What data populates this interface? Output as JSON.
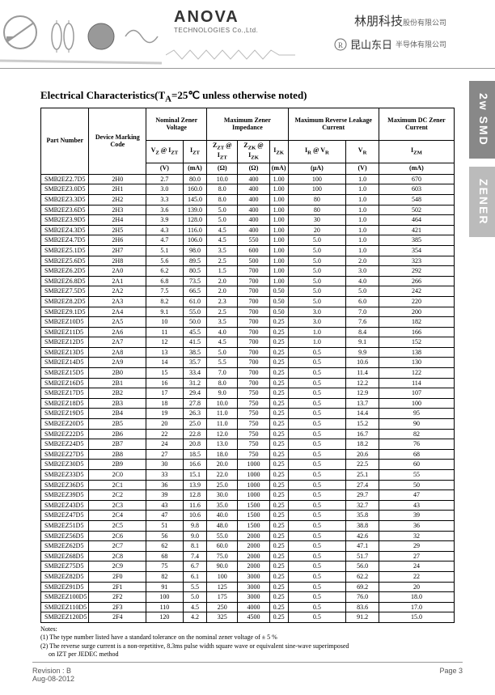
{
  "header": {
    "logo_main": "ANOVA",
    "logo_sub": "TECHNOLOGIES Co.,Ltd.",
    "cn_line1": "林朋科技",
    "cn_line1_small": "股份有限公司",
    "cn_line2": "昆山东日",
    "cn_line2_small": "半导体有限公司"
  },
  "side_tabs": [
    "2w SMD",
    "ZENER"
  ],
  "title": "Electrical Characteristics(T",
  "title_sub": "A",
  "title_rest": "=25℃ unless otherwise noted)",
  "table": {
    "head_row1": [
      "Part Number",
      "Device Marking Code",
      "Nominal Zener Voltage",
      "Maximum Zener Impedance",
      "Maximum Reverse Leakage Current",
      "Maximum DC Zener Current"
    ],
    "head_row2": [
      "V",
      "I",
      "Z",
      "Z",
      "I",
      "I",
      "V",
      "I"
    ],
    "head_row2_sub": [
      "Z",
      "ZT",
      "ZT",
      "ZK",
      "ZK",
      "R",
      "R",
      "ZM"
    ],
    "head_row2_at": [
      " @ I",
      "",
      " @ I",
      " @ I",
      "",
      " @ V",
      "",
      ""
    ],
    "head_row2_at_sub": [
      "ZT",
      "",
      "ZT",
      "ZK",
      "",
      "R",
      "",
      ""
    ],
    "units": [
      "(V)",
      "(mA)",
      "(Ω)",
      "(Ω)",
      "(mA)",
      "(µA)",
      "(V)",
      "(mA)"
    ],
    "rows": [
      [
        "SMB2EZ2.7D5",
        "2H0",
        "2.7",
        "80.0",
        "10.0",
        "400",
        "1.00",
        "100",
        "1.0",
        "670"
      ],
      [
        "SMB2EZ3.0D5",
        "2H1",
        "3.0",
        "160.0",
        "8.0",
        "400",
        "1.00",
        "100",
        "1.0",
        "603"
      ],
      [
        "SMB2EZ3.3D5",
        "2H2",
        "3.3",
        "145.0",
        "8.0",
        "400",
        "1.00",
        "80",
        "1.0",
        "548"
      ],
      [
        "SMB2EZ3.6D5",
        "2H3",
        "3.6",
        "139.0",
        "5.0",
        "400",
        "1.00",
        "80",
        "1.0",
        "502"
      ],
      [
        "SMB2EZ3.9D5",
        "2H4",
        "3.9",
        "128.0",
        "5.0",
        "400",
        "1.00",
        "30",
        "1.0",
        "464"
      ],
      [
        "SMB2EZ4.3D5",
        "2H5",
        "4.3",
        "116.0",
        "4.5",
        "400",
        "1.00",
        "20",
        "1.0",
        "421"
      ],
      [
        "SMB2EZ4.7D5",
        "2H6",
        "4.7",
        "106.0",
        "4.5",
        "550",
        "1.00",
        "5.0",
        "1.0",
        "385"
      ],
      [
        "SMB2EZ5.1D5",
        "2H7",
        "5.1",
        "98.0",
        "3.5",
        "600",
        "1.00",
        "5.0",
        "1.0",
        "354"
      ],
      [
        "SMB2EZ5.6D5",
        "2H8",
        "5.6",
        "89.5",
        "2.5",
        "500",
        "1.00",
        "5.0",
        "2.0",
        "323"
      ],
      [
        "SMB2EZ6.2D5",
        "2A0",
        "6.2",
        "80.5",
        "1.5",
        "700",
        "1.00",
        "5.0",
        "3.0",
        "292"
      ],
      [
        "SMB2EZ6.8D5",
        "2A1",
        "6.8",
        "73.5",
        "2.0",
        "700",
        "1.00",
        "5.0",
        "4.0",
        "266"
      ],
      [
        "SMB2EZ7.5D5",
        "2A2",
        "7.5",
        "66.5",
        "2.0",
        "700",
        "0.50",
        "5.0",
        "5.0",
        "242"
      ],
      [
        "SMB2EZ8.2D5",
        "2A3",
        "8.2",
        "61.0",
        "2.3",
        "700",
        "0.50",
        "5.0",
        "6.0",
        "220"
      ],
      [
        "SMB2EZ9.1D5",
        "2A4",
        "9.1",
        "55.0",
        "2.5",
        "700",
        "0.50",
        "3.0",
        "7.0",
        "200"
      ],
      [
        "SMB2EZ10D5",
        "2A5",
        "10",
        "50.0",
        "3.5",
        "700",
        "0.25",
        "3.0",
        "7.6",
        "182"
      ],
      [
        "SMB2EZ11D5",
        "2A6",
        "11",
        "45.5",
        "4.0",
        "700",
        "0.25",
        "1.0",
        "8.4",
        "166"
      ],
      [
        "SMB2EZ12D5",
        "2A7",
        "12",
        "41.5",
        "4.5",
        "700",
        "0.25",
        "1.0",
        "9.1",
        "152"
      ],
      [
        "SMB2EZ13D5",
        "2A8",
        "13",
        "38.5",
        "5.0",
        "700",
        "0.25",
        "0.5",
        "9.9",
        "138"
      ],
      [
        "SMB2EZ14D5",
        "2A9",
        "14",
        "35.7",
        "5.5",
        "700",
        "0.25",
        "0.5",
        "10.6",
        "130"
      ],
      [
        "SMB2EZ15D5",
        "2B0",
        "15",
        "33.4",
        "7.0",
        "700",
        "0.25",
        "0.5",
        "11.4",
        "122"
      ],
      [
        "SMB2EZ16D5",
        "2B1",
        "16",
        "31.2",
        "8.0",
        "700",
        "0.25",
        "0.5",
        "12.2",
        "114"
      ],
      [
        "SMB2EZ17D5",
        "2B2",
        "17",
        "29.4",
        "9.0",
        "750",
        "0.25",
        "0.5",
        "12.9",
        "107"
      ],
      [
        "SMB2EZ18D5",
        "2B3",
        "18",
        "27.8",
        "10.0",
        "750",
        "0.25",
        "0.5",
        "13.7",
        "100"
      ],
      [
        "SMB2EZ19D5",
        "2B4",
        "19",
        "26.3",
        "11.0",
        "750",
        "0.25",
        "0.5",
        "14.4",
        "95"
      ],
      [
        "SMB2EZ20D5",
        "2B5",
        "20",
        "25.0",
        "11.0",
        "750",
        "0.25",
        "0.5",
        "15.2",
        "90"
      ],
      [
        "SMB2EZ22D5",
        "2B6",
        "22",
        "22.8",
        "12.0",
        "750",
        "0.25",
        "0.5",
        "16.7",
        "82"
      ],
      [
        "SMB2EZ24D5",
        "2B7",
        "24",
        "20.8",
        "13.0",
        "750",
        "0.25",
        "0.5",
        "18.2",
        "76"
      ],
      [
        "SMB2EZ27D5",
        "2B8",
        "27",
        "18.5",
        "18.0",
        "750",
        "0.25",
        "0.5",
        "20.6",
        "68"
      ],
      [
        "SMB2EZ30D5",
        "2B9",
        "30",
        "16.6",
        "20.0",
        "1000",
        "0.25",
        "0.5",
        "22.5",
        "60"
      ],
      [
        "SMB2EZ33D5",
        "2C0",
        "33",
        "15.1",
        "22.0",
        "1000",
        "0.25",
        "0.5",
        "25.1",
        "55"
      ],
      [
        "SMB2EZ36D5",
        "2C1",
        "36",
        "13.9",
        "25.0",
        "1000",
        "0.25",
        "0.5",
        "27.4",
        "50"
      ],
      [
        "SMB2EZ39D5",
        "2C2",
        "39",
        "12.8",
        "30.0",
        "1000",
        "0.25",
        "0.5",
        "29.7",
        "47"
      ],
      [
        "SMB2EZ43D5",
        "2C3",
        "43",
        "11.6",
        "35.0",
        "1500",
        "0.25",
        "0.5",
        "32.7",
        "43"
      ],
      [
        "SMB2EZ47D5",
        "2C4",
        "47",
        "10.6",
        "40.0",
        "1500",
        "0.25",
        "0.5",
        "35.8",
        "39"
      ],
      [
        "SMB2EZ51D5",
        "2C5",
        "51",
        "9.8",
        "48.0",
        "1500",
        "0.25",
        "0.5",
        "38.8",
        "36"
      ],
      [
        "SMB2EZ56D5",
        "2C6",
        "56",
        "9.0",
        "55.0",
        "2000",
        "0.25",
        "0.5",
        "42.6",
        "32"
      ],
      [
        "SMB2EZ62D5",
        "2C7",
        "62",
        "8.1",
        "60.0",
        "2000",
        "0.25",
        "0.5",
        "47.1",
        "29"
      ],
      [
        "SMB2EZ68D5",
        "2C8",
        "68",
        "7.4",
        "75.0",
        "2000",
        "0.25",
        "0.5",
        "51.7",
        "27"
      ],
      [
        "SMB2EZ75D5",
        "2C9",
        "75",
        "6.7",
        "90.0",
        "2000",
        "0.25",
        "0.5",
        "56.0",
        "24"
      ],
      [
        "SMB2EZ82D5",
        "2F0",
        "82",
        "6.1",
        "100",
        "3000",
        "0.25",
        "0.5",
        "62.2",
        "22"
      ],
      [
        "SMB2EZ91D5",
        "2F1",
        "91",
        "5.5",
        "125",
        "3000",
        "0.25",
        "0.5",
        "69.2",
        "20"
      ],
      [
        "SMB2EZ100D5",
        "2F2",
        "100",
        "5.0",
        "175",
        "3000",
        "0.25",
        "0.5",
        "76.0",
        "18.0"
      ],
      [
        "SMB2EZ110D5",
        "2F3",
        "110",
        "4.5",
        "250",
        "4000",
        "0.25",
        "0.5",
        "83.6",
        "17.0"
      ],
      [
        "SMB2EZ120D5",
        "2F4",
        "120",
        "4.2",
        "325",
        "4500",
        "0.25",
        "0.5",
        "91.2",
        "15.0"
      ]
    ]
  },
  "notes": {
    "label": "Notes:",
    "n1": "(1) The type number listed have a standard tolerance on the nominal zener voltage of ± 5 %",
    "n2": "(2) The reverse surge current is a non-repetitive, 8.3ms pulse width square wave or equivalent sine-wave superimposed",
    "n2b": "     on IZT per JEDEC method"
  },
  "footer": {
    "rev": "Revision : B",
    "date": "Aug-08-2012",
    "page": "Page 3"
  }
}
